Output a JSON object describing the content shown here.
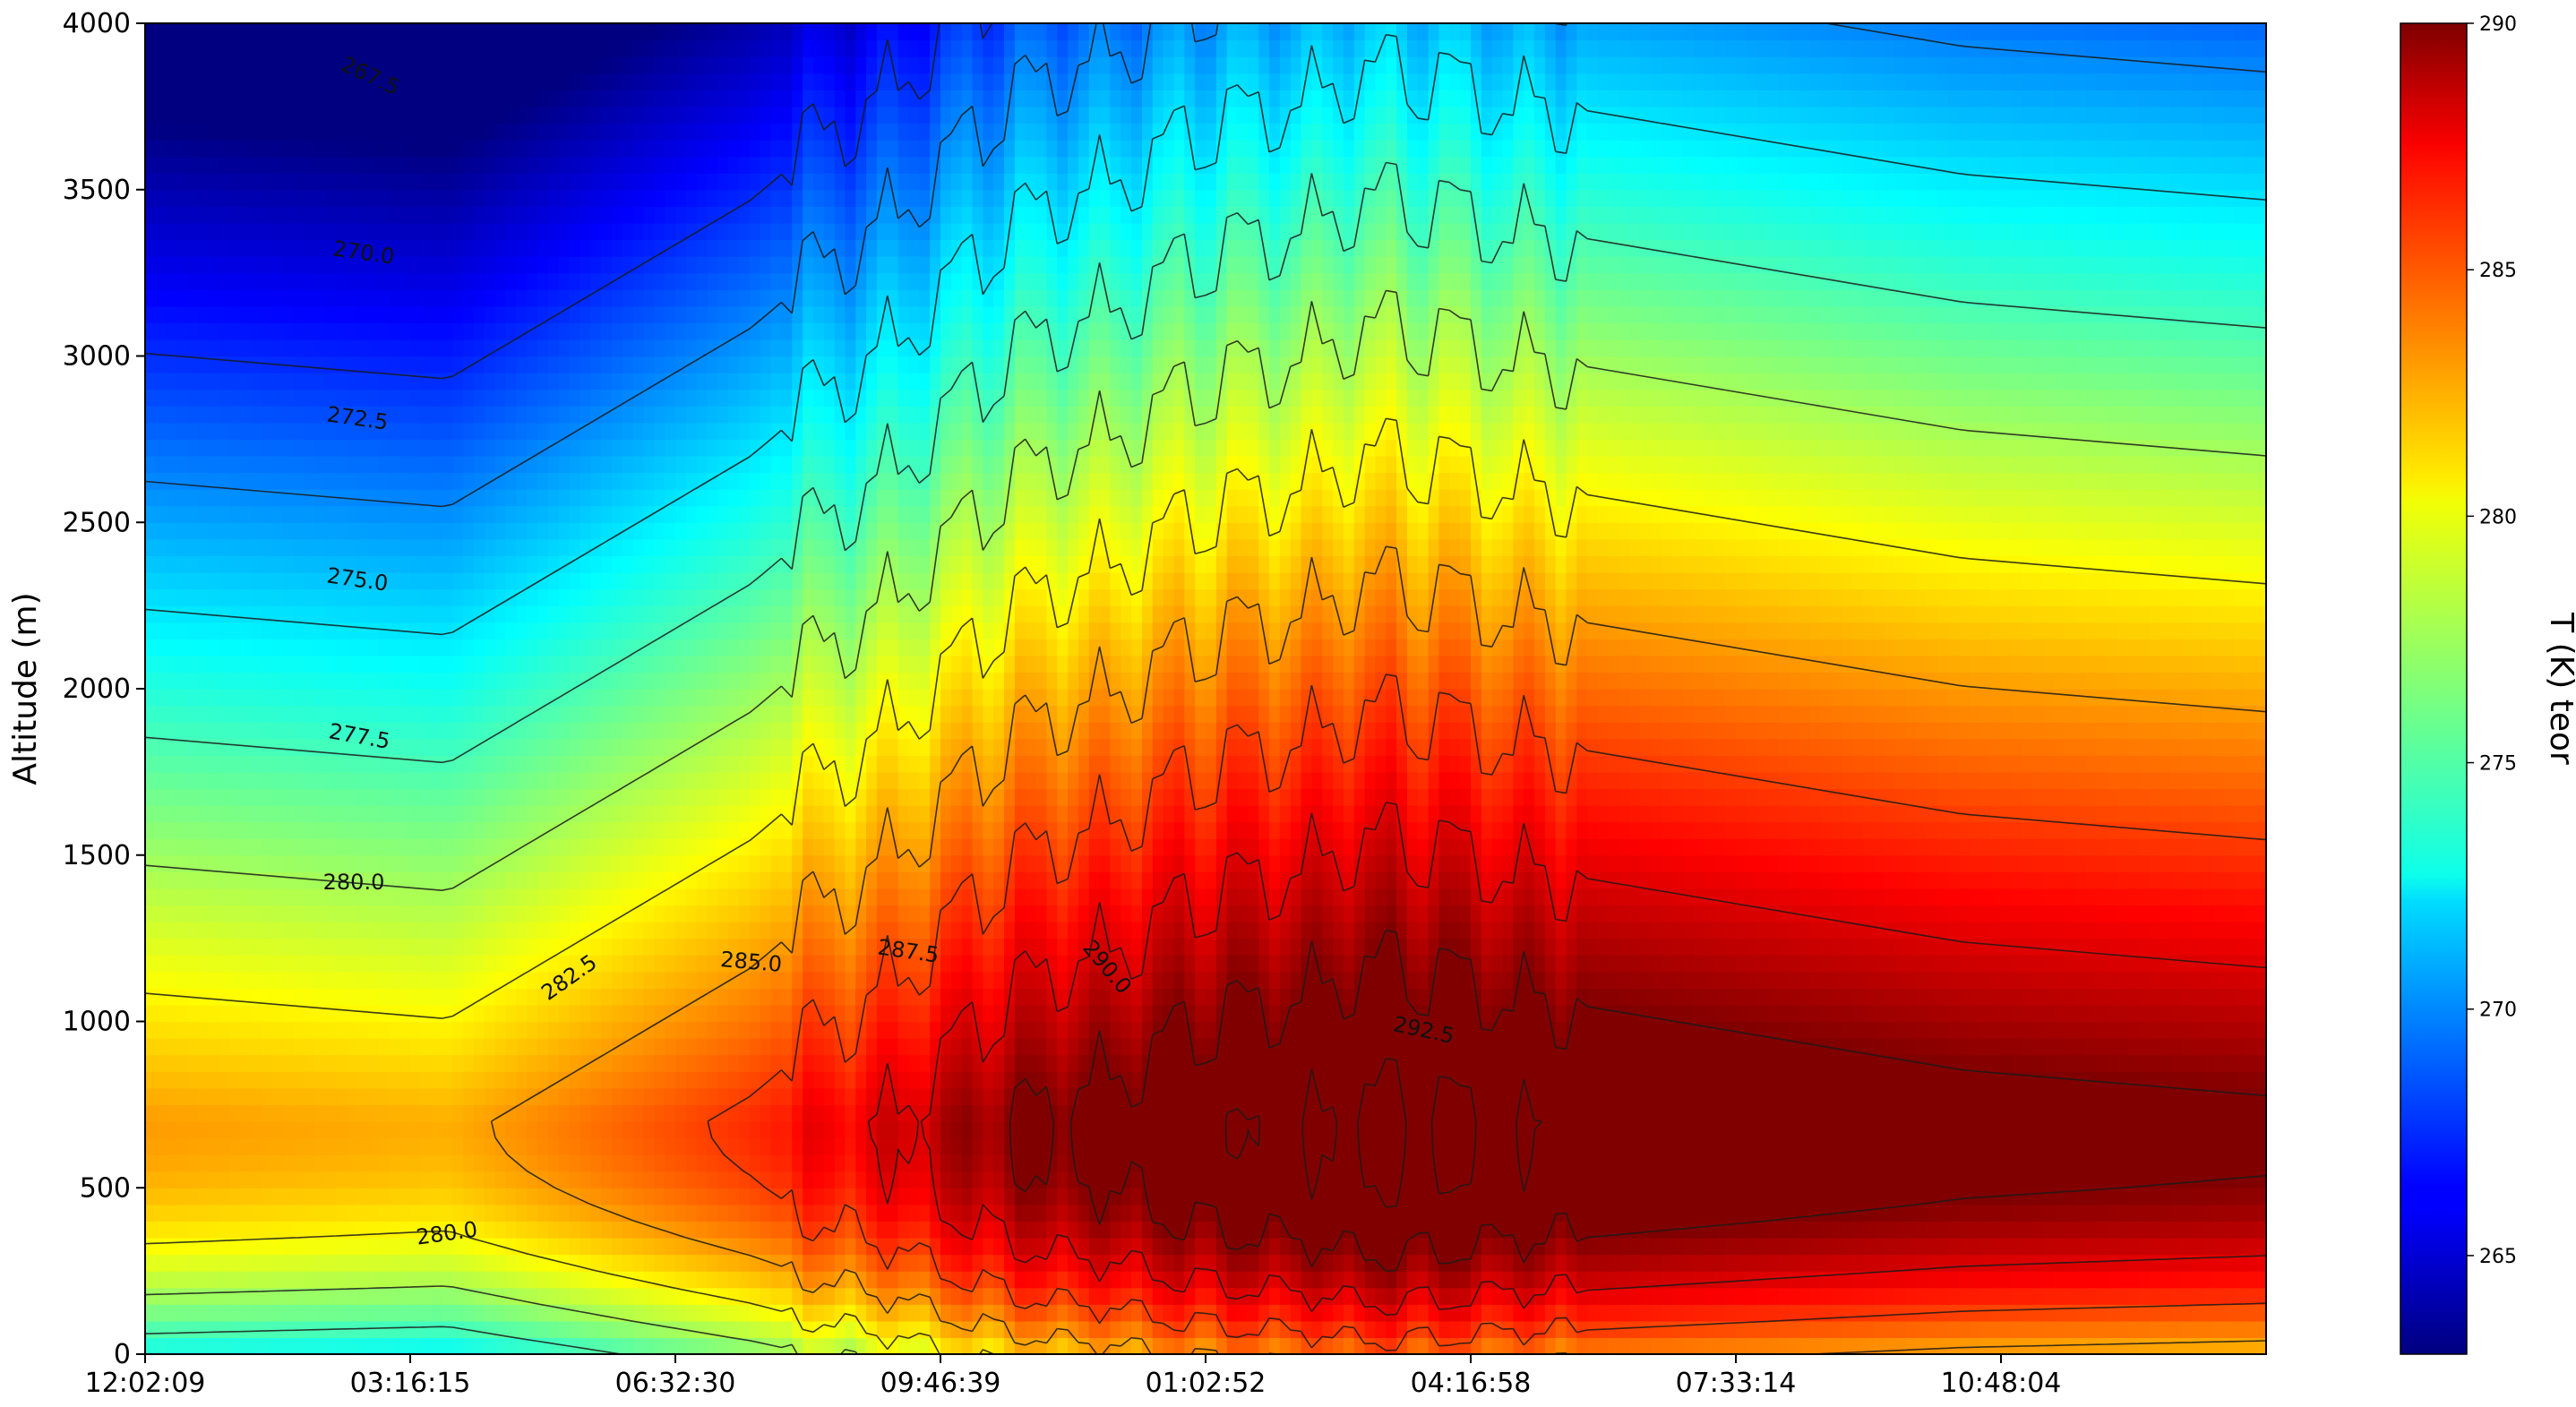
{
  "chart_data": {
    "type": "heatmap",
    "title": "",
    "xlabel": "",
    "ylabel": "Altitude (m)",
    "colorbar_label": "T (K) teor",
    "colormap": "jet",
    "color_range": [
      263,
      290
    ],
    "ylim": [
      0,
      4000
    ],
    "x_ticks": [
      "12:02:09",
      "03:16:15",
      "06:32:30",
      "09:46:39",
      "01:02:52",
      "04:16:58",
      "07:33:14",
      "10:48:04"
    ],
    "y_ticks": [
      0,
      500,
      1000,
      1500,
      2000,
      2500,
      3000,
      3500,
      4000
    ],
    "colorbar_ticks": [
      265,
      270,
      275,
      280,
      285,
      290
    ],
    "contour_levels": [
      267.5,
      270.0,
      272.5,
      275.0,
      277.5,
      280.0,
      282.5,
      285.0,
      287.5,
      290.0,
      292.5
    ],
    "contour_labels": [
      "267.5",
      "270.0",
      "272.5",
      "275.0",
      "277.5",
      "280.0",
      "282.5",
      "285.0",
      "287.5",
      "290.0",
      "292.5",
      "280.0"
    ],
    "approx_surface_temperature_by_time": [
      {
        "x": "12:02:09",
        "t_max_K": 282.5,
        "t_max_altitude_m": 750
      },
      {
        "x": "03:16:15",
        "t_max_K": 282.0,
        "t_max_altitude_m": 700
      },
      {
        "x": "06:32:30",
        "t_max_K": 285.5,
        "t_max_altitude_m": 700
      },
      {
        "x": "09:46:39",
        "t_max_K": 290.5,
        "t_max_altitude_m": 700
      },
      {
        "x": "01:02:52",
        "t_max_K": 293.0,
        "t_max_altitude_m": 700
      },
      {
        "x": "04:16:58",
        "t_max_K": 292.0,
        "t_max_altitude_m": 700
      },
      {
        "x": "07:33:14",
        "t_max_K": 291.0,
        "t_max_altitude_m": 700
      },
      {
        "x": "10:48:04",
        "t_max_K": 290.5,
        "t_max_altitude_m": 700
      }
    ],
    "grid": false
  }
}
